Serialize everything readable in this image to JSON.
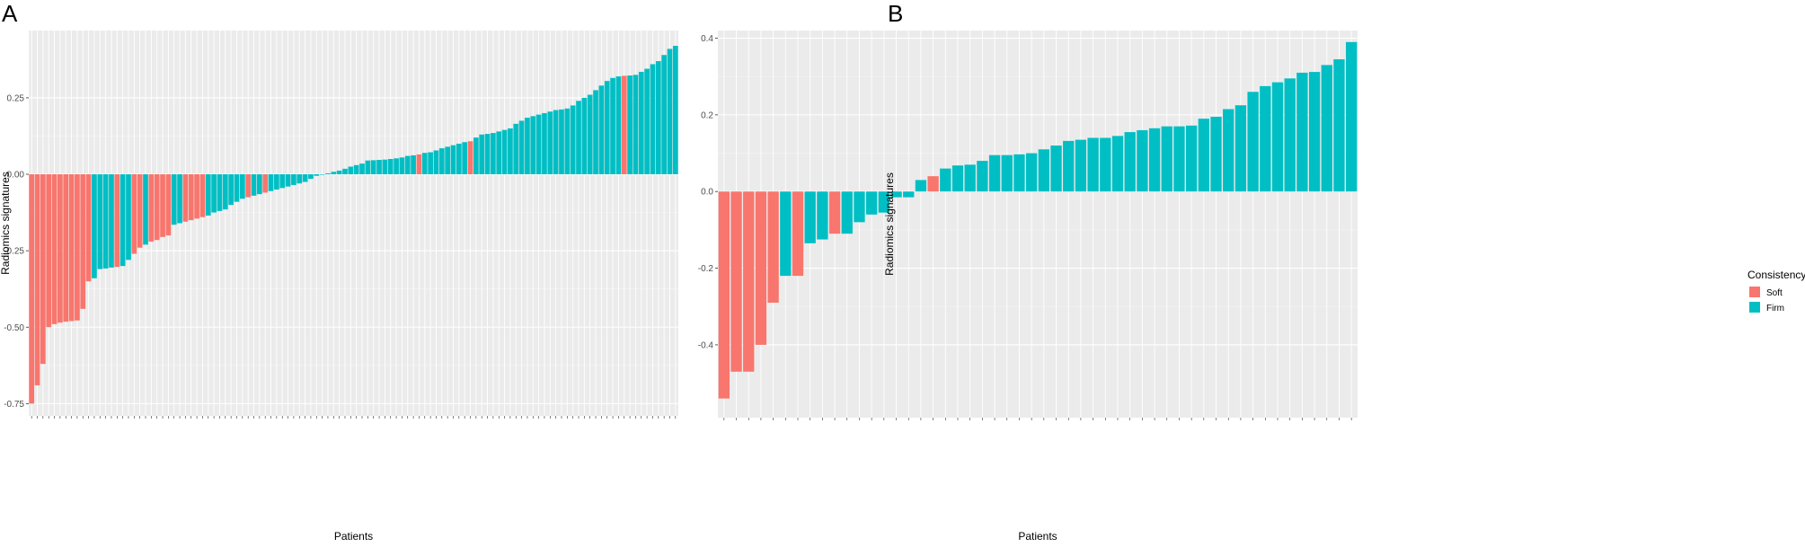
{
  "chart_data": [
    {
      "type": "bar",
      "panel": "A",
      "xlabel": "Patients",
      "ylabel": "Radiomics signatures",
      "ylim": [
        -0.79,
        0.47
      ],
      "yticks": [
        -0.75,
        -0.5,
        -0.25,
        0.0,
        0.25
      ],
      "ytick_labels": [
        "-0.75",
        "-0.50",
        "-0.25",
        "0.00",
        "0.25"
      ],
      "grid": true,
      "legend": "none",
      "categories_note": "one bar per patient, sorted ascending; tick labels illegible",
      "values": [
        -0.75,
        -0.69,
        -0.62,
        -0.5,
        -0.49,
        -0.485,
        -0.482,
        -0.48,
        -0.478,
        -0.44,
        -0.35,
        -0.34,
        -0.31,
        -0.308,
        -0.305,
        -0.303,
        -0.3,
        -0.28,
        -0.26,
        -0.24,
        -0.23,
        -0.22,
        -0.215,
        -0.205,
        -0.2,
        -0.165,
        -0.16,
        -0.155,
        -0.15,
        -0.145,
        -0.14,
        -0.135,
        -0.125,
        -0.12,
        -0.115,
        -0.1,
        -0.09,
        -0.08,
        -0.075,
        -0.07,
        -0.065,
        -0.06,
        -0.055,
        -0.05,
        -0.045,
        -0.04,
        -0.035,
        -0.03,
        -0.025,
        -0.015,
        -0.005,
        0.0,
        0.003,
        0.008,
        0.012,
        0.018,
        0.025,
        0.03,
        0.035,
        0.045,
        0.046,
        0.047,
        0.048,
        0.05,
        0.052,
        0.055,
        0.06,
        0.062,
        0.065,
        0.07,
        0.072,
        0.078,
        0.085,
        0.09,
        0.095,
        0.1,
        0.105,
        0.108,
        0.12,
        0.13,
        0.132,
        0.135,
        0.14,
        0.145,
        0.15,
        0.165,
        0.175,
        0.185,
        0.19,
        0.195,
        0.2,
        0.205,
        0.21,
        0.212,
        0.215,
        0.225,
        0.24,
        0.25,
        0.26,
        0.275,
        0.29,
        0.305,
        0.315,
        0.32,
        0.322,
        0.323,
        0.325,
        0.335,
        0.345,
        0.36,
        0.37,
        0.39,
        0.41,
        0.42
      ],
      "series": [
        "Soft",
        "Soft",
        "Soft",
        "Soft",
        "Soft",
        "Soft",
        "Soft",
        "Soft",
        "Soft",
        "Soft",
        "Soft",
        "Firm",
        "Firm",
        "Firm",
        "Firm",
        "Soft",
        "Firm",
        "Firm",
        "Soft",
        "Soft",
        "Firm",
        "Soft",
        "Soft",
        "Soft",
        "Soft",
        "Firm",
        "Firm",
        "Soft",
        "Soft",
        "Soft",
        "Soft",
        "Firm",
        "Firm",
        "Firm",
        "Firm",
        "Firm",
        "Firm",
        "Firm",
        "Soft",
        "Firm",
        "Firm",
        "Soft",
        "Firm",
        "Firm",
        "Firm",
        "Firm",
        "Firm",
        "Firm",
        "Firm",
        "Firm",
        "Firm",
        "Firm",
        "Firm",
        "Firm",
        "Firm",
        "Firm",
        "Firm",
        "Firm",
        "Firm",
        "Firm",
        "Firm",
        "Firm",
        "Firm",
        "Firm",
        "Firm",
        "Firm",
        "Firm",
        "Firm",
        "Soft",
        "Firm",
        "Firm",
        "Firm",
        "Firm",
        "Firm",
        "Firm",
        "Firm",
        "Firm",
        "Soft",
        "Firm",
        "Firm",
        "Firm",
        "Firm",
        "Firm",
        "Firm",
        "Firm",
        "Firm",
        "Firm",
        "Firm",
        "Firm",
        "Firm",
        "Firm",
        "Firm",
        "Firm",
        "Firm",
        "Firm",
        "Firm",
        "Firm",
        "Firm",
        "Firm",
        "Firm",
        "Firm",
        "Firm",
        "Firm",
        "Firm",
        "Soft",
        "Firm",
        "Firm",
        "Firm",
        "Firm",
        "Firm",
        "Firm",
        "Firm",
        "Firm",
        "Firm"
      ]
    },
    {
      "type": "bar",
      "panel": "B",
      "xlabel": "Patients",
      "ylabel": "Radiomics signatures",
      "ylim": [
        -0.59,
        0.42
      ],
      "yticks": [
        -0.4,
        -0.2,
        0.0,
        0.2,
        0.4
      ],
      "ytick_labels": [
        "-0.4",
        "-0.2",
        "0.0",
        "0.2",
        "0.4"
      ],
      "grid": true,
      "legend": "right",
      "categories_note": "one bar per patient, sorted ascending; tick labels illegible",
      "values": [
        -0.54,
        -0.47,
        -0.47,
        -0.4,
        -0.29,
        -0.22,
        -0.22,
        -0.135,
        -0.125,
        -0.11,
        -0.11,
        -0.08,
        -0.06,
        -0.055,
        -0.015,
        -0.015,
        0.03,
        0.04,
        0.06,
        0.068,
        0.07,
        0.08,
        0.095,
        0.095,
        0.097,
        0.1,
        0.11,
        0.12,
        0.132,
        0.135,
        0.14,
        0.14,
        0.145,
        0.155,
        0.16,
        0.165,
        0.17,
        0.17,
        0.172,
        0.19,
        0.195,
        0.215,
        0.225,
        0.26,
        0.275,
        0.285,
        0.295,
        0.31,
        0.312,
        0.33,
        0.345,
        0.39
      ],
      "series": [
        "Soft",
        "Soft",
        "Soft",
        "Soft",
        "Soft",
        "Firm",
        "Soft",
        "Firm",
        "Firm",
        "Soft",
        "Firm",
        "Firm",
        "Firm",
        "Firm",
        "Firm",
        "Firm",
        "Firm",
        "Soft",
        "Firm",
        "Firm",
        "Firm",
        "Firm",
        "Firm",
        "Firm",
        "Firm",
        "Firm",
        "Firm",
        "Firm",
        "Firm",
        "Firm",
        "Firm",
        "Firm",
        "Firm",
        "Firm",
        "Firm",
        "Firm",
        "Firm",
        "Firm",
        "Firm",
        "Firm",
        "Firm",
        "Firm",
        "Firm",
        "Firm",
        "Firm",
        "Firm",
        "Firm",
        "Firm",
        "Firm",
        "Firm",
        "Firm",
        "Firm"
      ]
    }
  ],
  "panels": {
    "a": "A",
    "b": "B"
  },
  "legend": {
    "title": "Consistency",
    "items": [
      {
        "name": "Soft",
        "color": "#F8766D"
      },
      {
        "name": "Firm",
        "color": "#00BFC4"
      }
    ]
  }
}
